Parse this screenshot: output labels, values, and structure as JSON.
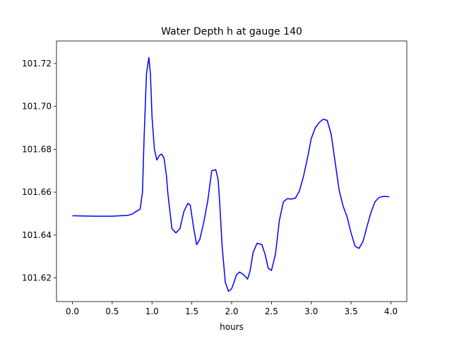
{
  "chart_data": {
    "type": "line",
    "title": "Water Depth h at gauge 140",
    "xlabel": "hours",
    "ylabel": "",
    "xlim": [
      -0.2,
      4.2
    ],
    "ylim": [
      101.609,
      101.7305
    ],
    "xticks": [
      0.0,
      0.5,
      1.0,
      1.5,
      2.0,
      2.5,
      3.0,
      3.5,
      4.0
    ],
    "xtick_labels": [
      "0.0",
      "0.5",
      "1.0",
      "1.5",
      "2.0",
      "2.5",
      "3.0",
      "3.5",
      "4.0"
    ],
    "yticks": [
      101.62,
      101.64,
      101.66,
      101.68,
      101.7,
      101.72
    ],
    "ytick_labels": [
      "101.62",
      "101.64",
      "101.66",
      "101.68",
      "101.70",
      "101.72"
    ],
    "grid": false,
    "line_color": "#0000ff",
    "series": [
      {
        "x": [
          0.0,
          0.3,
          0.5,
          0.7,
          0.75,
          0.8,
          0.85,
          0.88,
          0.9,
          0.93,
          0.96,
          0.98,
          1.0,
          1.03,
          1.06,
          1.09,
          1.12,
          1.15,
          1.18,
          1.2,
          1.25,
          1.3,
          1.35,
          1.4,
          1.45,
          1.48,
          1.52,
          1.56,
          1.6,
          1.65,
          1.7,
          1.75,
          1.8,
          1.83,
          1.85,
          1.88,
          1.92,
          1.96,
          2.0,
          2.03,
          2.06,
          2.1,
          2.15,
          2.2,
          2.23,
          2.27,
          2.32,
          2.38,
          2.42,
          2.46,
          2.5,
          2.55,
          2.6,
          2.65,
          2.7,
          2.75,
          2.8,
          2.85,
          2.9,
          2.95,
          3.0,
          3.05,
          3.1,
          3.15,
          3.2,
          3.25,
          3.3,
          3.35,
          3.4,
          3.45,
          3.5,
          3.55,
          3.6,
          3.65,
          3.7,
          3.75,
          3.8,
          3.85,
          3.9,
          3.95,
          3.98
        ],
        "y": [
          101.649,
          101.6488,
          101.6488,
          101.6492,
          101.6498,
          101.651,
          101.652,
          101.66,
          101.685,
          101.715,
          101.7228,
          101.715,
          101.695,
          101.68,
          101.675,
          101.677,
          101.6778,
          101.676,
          101.668,
          101.659,
          101.643,
          101.641,
          101.643,
          101.651,
          101.6548,
          101.654,
          101.644,
          101.6355,
          101.638,
          101.646,
          101.656,
          101.67,
          101.6705,
          101.666,
          101.655,
          101.635,
          101.618,
          101.6138,
          101.615,
          101.618,
          101.6215,
          101.6228,
          101.6215,
          101.6195,
          101.623,
          101.632,
          101.6362,
          101.6355,
          101.631,
          101.6245,
          101.6235,
          101.631,
          101.647,
          101.6555,
          101.657,
          101.6568,
          101.6572,
          101.6605,
          101.667,
          101.6755,
          101.685,
          101.69,
          101.6925,
          101.694,
          101.6935,
          101.687,
          101.674,
          101.661,
          101.6535,
          101.6485,
          101.641,
          101.6348,
          101.6338,
          101.637,
          101.644,
          101.6505,
          101.6555,
          101.6575,
          101.658,
          101.658,
          101.6578
        ]
      }
    ]
  }
}
